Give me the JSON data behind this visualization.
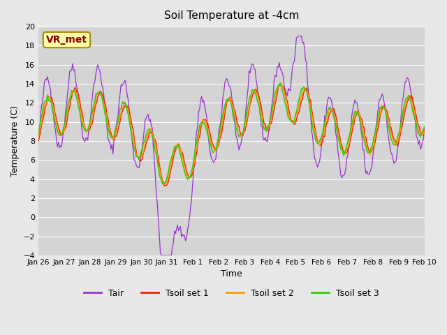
{
  "title": "Soil Temperature at -4cm",
  "xlabel": "Time",
  "ylabel": "Temperature (C)",
  "ylim": [
    -4,
    20
  ],
  "yticks": [
    -4,
    -2,
    0,
    2,
    4,
    6,
    8,
    10,
    12,
    14,
    16,
    18,
    20
  ],
  "xtick_labels": [
    "Jan 26",
    "Jan 27",
    "Jan 28",
    "Jan 29",
    "Jan 30",
    "Jan 31",
    "Feb 1",
    "Feb 2",
    "Feb 3",
    "Feb 4",
    "Feb 5",
    "Feb 6",
    "Feb 7",
    "Feb 8",
    "Feb 9",
    "Feb 10"
  ],
  "xlim": [
    0,
    15
  ],
  "bg_color": "#e8e8e8",
  "plot_bg_color": "#d4d4d4",
  "grid_color": "#ffffff",
  "annotation_text": "VR_met",
  "annotation_bg": "#ffffaa",
  "annotation_border": "#aa8800",
  "annotation_text_color": "#880000",
  "colors": {
    "Tair": "#9933cc",
    "Tsoil1": "#ff2200",
    "Tsoil2": "#ff9900",
    "Tsoil3": "#33cc00"
  },
  "legend_labels": [
    "Tair",
    "Tsoil set 1",
    "Tsoil set 2",
    "Tsoil set 3"
  ]
}
